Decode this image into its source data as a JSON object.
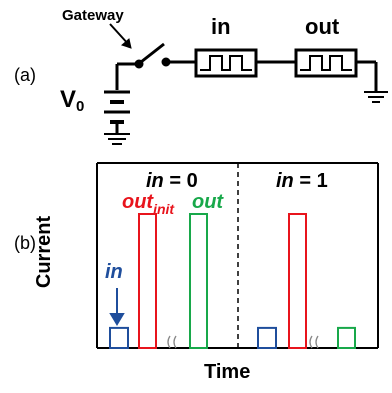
{
  "panel_a": {
    "label": "(a)",
    "gateway_label": "Gateway",
    "in_label": "in",
    "out_label": "out",
    "source_label": "V",
    "source_subscript": "0"
  },
  "panel_b": {
    "label": "(b)",
    "ylabel": "Current",
    "xlabel": "Time",
    "region_left": {
      "var": "in",
      "eq": " = 0"
    },
    "region_right": {
      "var": "in",
      "eq": " = 1"
    },
    "pulse_labels": {
      "in": "in",
      "out_init": "out",
      "out_init_sub": "init",
      "out": "out"
    }
  },
  "colors": {
    "in": "#1f4e9c",
    "out_init": "#e8141c",
    "out": "#18a84a"
  },
  "chart_data": {
    "type": "bar",
    "xlabel": "Time",
    "ylabel": "Current",
    "series": [
      {
        "name": "in",
        "color": "#1f4e9c",
        "values": [
          0.15,
          0.15
        ]
      },
      {
        "name": "out_init",
        "color": "#e8141c",
        "values": [
          1.0,
          1.0
        ]
      },
      {
        "name": "out",
        "color": "#18a84a",
        "values": [
          1.0,
          0.15
        ]
      }
    ],
    "regions": [
      "in = 0",
      "in = 1"
    ]
  }
}
